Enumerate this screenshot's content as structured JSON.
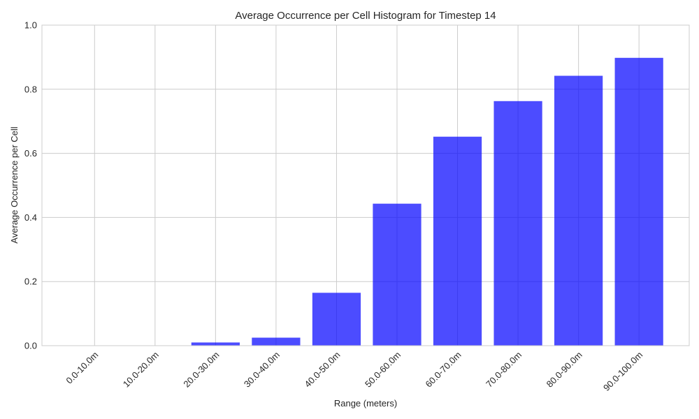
{
  "chart_data": {
    "type": "bar",
    "title": "Average Occurrence per Cell Histogram for Timestep 14",
    "xlabel": "Range (meters)",
    "ylabel": "Average Occurrence per Cell",
    "categories": [
      "0.0-10.0m",
      "10.0-20.0m",
      "20.0-30.0m",
      "30.0-40.0m",
      "40.0-50.0m",
      "50.0-60.0m",
      "60.0-70.0m",
      "70.0-80.0m",
      "80.0-90.0m",
      "90.0-100.0m"
    ],
    "values": [
      0.0,
      0.0,
      0.01,
      0.025,
      0.165,
      0.443,
      0.652,
      0.763,
      0.842,
      0.898
    ],
    "ylim": [
      0,
      1.0
    ],
    "yticks": [
      "0.0",
      "0.2",
      "0.4",
      "0.6",
      "0.8",
      "1.0"
    ],
    "grid": true,
    "bar_color": "#0000ff",
    "bar_opacity": 0.7,
    "grid_color": "#cccccc"
  }
}
